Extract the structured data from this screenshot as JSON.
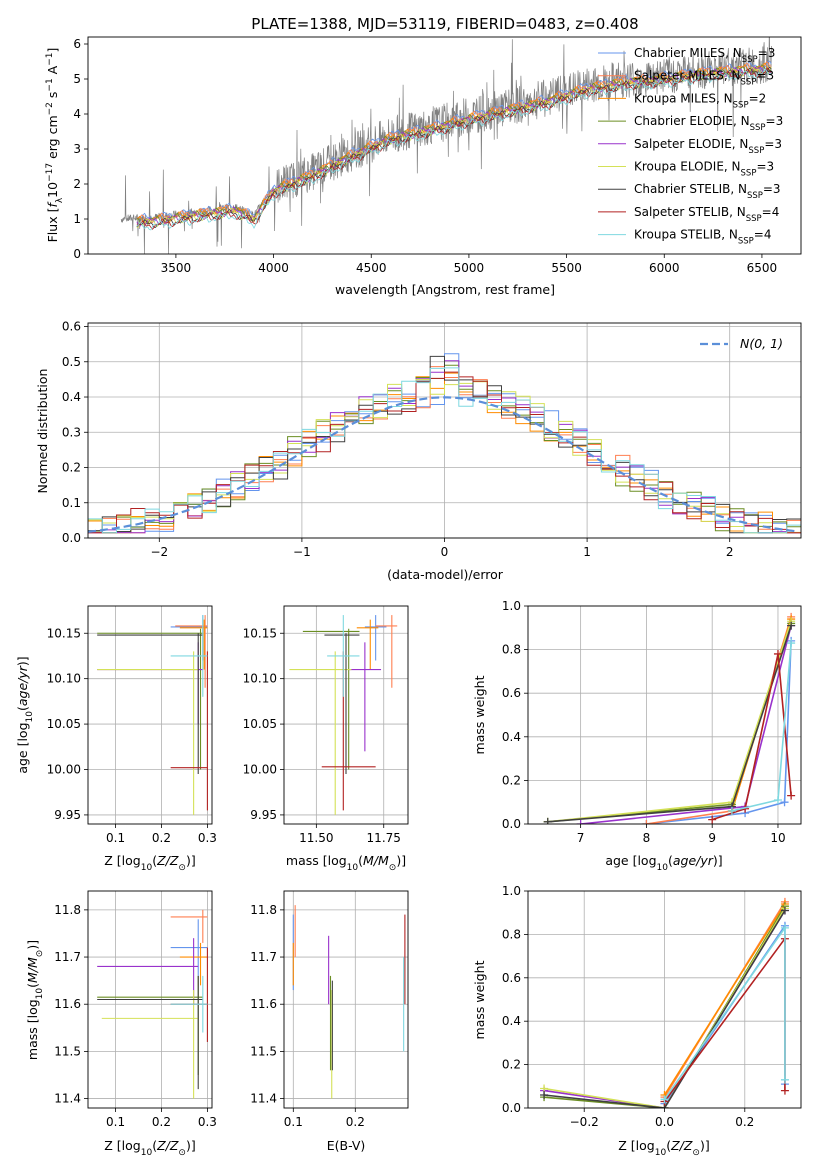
{
  "figure": {
    "title": "PLATE=1388, MJD=53119, FIBERID=0483, z=0.408"
  },
  "colors": {
    "Chabrier MILES": "#6495ed",
    "Salpeter MILES": "#ff7f50",
    "Kroupa MILES": "#ff8c00",
    "Chabrier ELODIE": "#6b8e23",
    "Salpeter ELODIE": "#9932cc",
    "Kroupa ELODIE": "#d4e157",
    "Chabrier STELIB": "#404040",
    "Salpeter STELIB": "#b22222",
    "Kroupa STELIB": "#7fd8e0",
    "data": "#808080",
    "normal": "#5b8fd9"
  },
  "chart_data": [
    {
      "id": "spectrum",
      "type": "line",
      "xlabel": "wavelength [Angstrom, rest frame]",
      "ylabel": "Flux [f_λ 10^-17 erg cm^-2 s^-1 A^-1]",
      "xlim": [
        3050,
        6700
      ],
      "ylim": [
        0,
        6.2
      ],
      "xticks": [
        3500,
        4000,
        4500,
        5000,
        5500,
        6000,
        6500
      ],
      "yticks": [
        0,
        1,
        2,
        3,
        4,
        5,
        6
      ],
      "grid": false,
      "legend_position": "top-right",
      "data_range": [
        3220,
        6550
      ],
      "continuum": [
        [
          3220,
          1.0
        ],
        [
          3400,
          1.05
        ],
        [
          3600,
          1.2
        ],
        [
          3800,
          1.35
        ],
        [
          3900,
          1.1
        ],
        [
          4000,
          1.9
        ],
        [
          4200,
          2.35
        ],
        [
          4400,
          2.9
        ],
        [
          4600,
          3.4
        ],
        [
          4800,
          3.65
        ],
        [
          5000,
          3.95
        ],
        [
          5200,
          4.2
        ],
        [
          5400,
          4.45
        ],
        [
          5600,
          4.8
        ],
        [
          5800,
          5.0
        ],
        [
          6000,
          5.1
        ],
        [
          6200,
          5.25
        ],
        [
          6400,
          5.35
        ],
        [
          6550,
          5.4
        ]
      ],
      "legend": [
        {
          "label": "Chabrier MILES",
          "nssp": "3"
        },
        {
          "label": "Salpeter MILES",
          "nssp": "3"
        },
        {
          "label": "Kroupa MILES",
          "nssp": "2"
        },
        {
          "label": "Chabrier ELODIE",
          "nssp": "3"
        },
        {
          "label": "Salpeter ELODIE",
          "nssp": "3"
        },
        {
          "label": "Kroupa ELODIE",
          "nssp": "3"
        },
        {
          "label": "Chabrier STELIB",
          "nssp": "3"
        },
        {
          "label": "Salpeter STELIB",
          "nssp": "4"
        },
        {
          "label": "Kroupa STELIB",
          "nssp": "4"
        }
      ]
    },
    {
      "id": "residuals",
      "type": "line",
      "xlabel": "(data-model)/error",
      "ylabel": "Normed distribution",
      "xlim": [
        -2.5,
        2.5
      ],
      "ylim": [
        0,
        0.61
      ],
      "xticks": [
        -2,
        -1,
        0,
        1,
        2
      ],
      "yticks": [
        0.0,
        0.1,
        0.2,
        0.3,
        0.4,
        0.5,
        0.6
      ],
      "grid": true,
      "legend_position": "top-right",
      "legend_label": "N(0, 1)",
      "bins": 50,
      "series": [
        {
          "model": "Chabrier MILES",
          "shift": 0.01
        },
        {
          "model": "Salpeter MILES",
          "shift": 0.015
        },
        {
          "model": "Kroupa MILES",
          "shift": 0.0
        },
        {
          "model": "Chabrier ELODIE",
          "shift": -0.01
        },
        {
          "model": "Salpeter ELODIE",
          "shift": 0.005
        },
        {
          "model": "Kroupa ELODIE",
          "shift": -0.005
        },
        {
          "model": "Chabrier STELIB",
          "shift": 0.02
        },
        {
          "model": "Salpeter STELIB",
          "shift": 0.025
        },
        {
          "model": "Kroupa STELIB",
          "shift": 0.0
        }
      ]
    },
    {
      "id": "age-vs-z",
      "type": "scatter",
      "xlabel": "Z [log10(Z/Z⊙)]",
      "ylabel": "age  [log10(age/yr)]",
      "xlim": [
        0.04,
        0.31
      ],
      "ylim": [
        9.94,
        10.18
      ],
      "xticks": [
        0.1,
        0.2,
        0.3
      ],
      "yticks": [
        9.95,
        10.0,
        10.05,
        10.1,
        10.15
      ],
      "grid": true,
      "points": [
        {
          "model": "Chabrier MILES",
          "x": 0.29,
          "y": 10.157,
          "xerr": [
            0.22,
            0.3
          ],
          "yerr": [
            10.12,
            10.17
          ]
        },
        {
          "model": "Salpeter MILES",
          "x": 0.295,
          "y": 10.158,
          "xerr": [
            0.23,
            0.3
          ],
          "yerr": [
            10.09,
            10.17
          ]
        },
        {
          "model": "Kroupa MILES",
          "x": 0.293,
          "y": 10.156,
          "xerr": [
            0.24,
            0.3
          ],
          "yerr": [
            10.11,
            10.165
          ]
        },
        {
          "model": "Chabrier ELODIE",
          "x": 0.285,
          "y": 10.15,
          "xerr": [
            0.06,
            0.29
          ],
          "yerr": [
            10.0,
            10.155
          ]
        },
        {
          "model": "Salpeter ELODIE",
          "x": 0.28,
          "y": 10.11,
          "xerr": [
            0.06,
            0.29
          ],
          "yerr": [
            10.05,
            10.14
          ]
        },
        {
          "model": "Kroupa ELODIE",
          "x": 0.27,
          "y": 10.11,
          "xerr": [
            0.06,
            0.28
          ],
          "yerr": [
            9.95,
            10.13
          ]
        },
        {
          "model": "Chabrier STELIB",
          "x": 0.28,
          "y": 10.148,
          "xerr": [
            0.06,
            0.29
          ],
          "yerr": [
            9.995,
            10.15
          ]
        },
        {
          "model": "Salpeter STELIB",
          "x": 0.3,
          "y": 10.002,
          "xerr": [
            0.22,
            0.3
          ],
          "yerr": [
            9.955,
            10.13
          ]
        },
        {
          "model": "Kroupa STELIB",
          "x": 0.29,
          "y": 10.125,
          "xerr": [
            0.22,
            0.3
          ],
          "yerr": [
            10.08,
            10.17
          ]
        }
      ]
    },
    {
      "id": "age-vs-mass",
      "type": "scatter",
      "xlabel": "mass [log10(M/M⊙)]",
      "ylabel": "",
      "xlim": [
        11.38,
        11.84
      ],
      "ylim": [
        9.94,
        10.18
      ],
      "xticks": [
        11.5,
        11.75
      ],
      "yticks": [
        9.95,
        10.0,
        10.05,
        10.1,
        10.15
      ],
      "grid": true,
      "points": [
        {
          "model": "Chabrier MILES",
          "x": 11.72,
          "y": 10.157,
          "xerr": [
            11.68,
            11.76
          ],
          "yerr": [
            10.12,
            10.17
          ]
        },
        {
          "model": "Salpeter MILES",
          "x": 11.78,
          "y": 10.158,
          "xerr": [
            11.72,
            11.8
          ],
          "yerr": [
            10.09,
            10.17
          ]
        },
        {
          "model": "Kroupa MILES",
          "x": 11.7,
          "y": 10.156,
          "xerr": [
            11.65,
            11.73
          ],
          "yerr": [
            10.11,
            10.165
          ]
        },
        {
          "model": "Chabrier ELODIE",
          "x": 11.62,
          "y": 10.152,
          "xerr": [
            11.45,
            11.66
          ],
          "yerr": [
            10.0,
            10.155
          ]
        },
        {
          "model": "Salpeter ELODIE",
          "x": 11.68,
          "y": 10.11,
          "xerr": [
            11.62,
            11.74
          ],
          "yerr": [
            10.02,
            10.14
          ]
        },
        {
          "model": "Kroupa ELODIE",
          "x": 11.57,
          "y": 10.11,
          "xerr": [
            11.4,
            11.63
          ],
          "yerr": [
            9.95,
            10.13
          ]
        },
        {
          "model": "Chabrier STELIB",
          "x": 11.61,
          "y": 10.148,
          "xerr": [
            11.53,
            11.66
          ],
          "yerr": [
            9.995,
            10.15
          ]
        },
        {
          "model": "Salpeter STELIB",
          "x": 11.6,
          "y": 10.003,
          "xerr": [
            11.52,
            11.72
          ],
          "yerr": [
            9.955,
            10.13
          ]
        },
        {
          "model": "Kroupa STELIB",
          "x": 11.6,
          "y": 10.125,
          "xerr": [
            11.54,
            11.66
          ],
          "yerr": [
            10.08,
            10.17
          ]
        }
      ]
    },
    {
      "id": "massweight-vs-age",
      "type": "line",
      "xlabel": "age  [log10(age/yr)]",
      "ylabel": "mass weight",
      "xlim": [
        6.2,
        10.35
      ],
      "ylim": [
        0,
        1.0
      ],
      "xticks": [
        7,
        8,
        9,
        10
      ],
      "yticks": [
        0.0,
        0.2,
        0.4,
        0.6,
        0.8,
        1.0
      ],
      "grid": true,
      "series": [
        {
          "model": "Chabrier MILES",
          "x": [
            8.0,
            9.5,
            10.1,
            10.2
          ],
          "y": [
            0.0,
            0.05,
            0.1,
            0.84
          ]
        },
        {
          "model": "Salpeter MILES",
          "x": [
            8.0,
            9.3,
            10.2
          ],
          "y": [
            0.0,
            0.06,
            0.95
          ]
        },
        {
          "model": "Kroupa MILES",
          "x": [
            9.3,
            10.2
          ],
          "y": [
            0.06,
            0.94
          ]
        },
        {
          "model": "Chabrier ELODIE",
          "x": [
            6.5,
            9.3,
            10.2
          ],
          "y": [
            0.01,
            0.09,
            0.92
          ]
        },
        {
          "model": "Salpeter ELODIE",
          "x": [
            7.0,
            9.5,
            10.2
          ],
          "y": [
            0.0,
            0.08,
            0.91
          ]
        },
        {
          "model": "Kroupa ELODIE",
          "x": [
            6.5,
            9.3,
            10.2
          ],
          "y": [
            0.01,
            0.1,
            0.93
          ]
        },
        {
          "model": "Chabrier STELIB",
          "x": [
            6.5,
            9.3,
            10.2
          ],
          "y": [
            0.01,
            0.08,
            0.91
          ]
        },
        {
          "model": "Salpeter STELIB",
          "x": [
            9.0,
            9.5,
            10.0,
            10.2
          ],
          "y": [
            0.02,
            0.07,
            0.78,
            0.13
          ]
        },
        {
          "model": "Kroupa STELIB",
          "x": [
            9.3,
            10.0,
            10.2
          ],
          "y": [
            0.06,
            0.11,
            0.83
          ]
        }
      ]
    },
    {
      "id": "mass-vs-z",
      "type": "scatter",
      "xlabel": "Z [log10(Z/Z⊙)]",
      "ylabel": "mass [log10(M/M⊙)]",
      "xlim": [
        0.04,
        0.31
      ],
      "ylim": [
        11.38,
        11.84
      ],
      "xticks": [
        0.1,
        0.2,
        0.3
      ],
      "yticks": [
        11.4,
        11.5,
        11.6,
        11.7,
        11.8
      ],
      "grid": true,
      "points": [
        {
          "model": "Chabrier MILES",
          "x": 0.28,
          "y": 11.72,
          "xerr": [
            0.22,
            0.3
          ],
          "yerr": [
            11.66,
            11.78
          ]
        },
        {
          "model": "Salpeter MILES",
          "x": 0.29,
          "y": 11.785,
          "xerr": [
            0.22,
            0.3
          ],
          "yerr": [
            11.73,
            11.8
          ]
        },
        {
          "model": "Kroupa MILES",
          "x": 0.285,
          "y": 11.7,
          "xerr": [
            0.24,
            0.3
          ],
          "yerr": [
            11.64,
            11.73
          ]
        },
        {
          "model": "Chabrier ELODIE",
          "x": 0.28,
          "y": 11.615,
          "xerr": [
            0.06,
            0.29
          ],
          "yerr": [
            11.45,
            11.66
          ]
        },
        {
          "model": "Salpeter ELODIE",
          "x": 0.27,
          "y": 11.68,
          "xerr": [
            0.06,
            0.28
          ],
          "yerr": [
            11.6,
            11.74
          ]
        },
        {
          "model": "Kroupa ELODIE",
          "x": 0.27,
          "y": 11.57,
          "xerr": [
            0.07,
            0.28
          ],
          "yerr": [
            11.4,
            11.63
          ]
        },
        {
          "model": "Chabrier STELIB",
          "x": 0.28,
          "y": 11.61,
          "xerr": [
            0.06,
            0.29
          ],
          "yerr": [
            11.42,
            11.66
          ]
        },
        {
          "model": "Salpeter STELIB",
          "x": 0.3,
          "y": 11.6,
          "xerr": [
            0.22,
            0.3
          ],
          "yerr": [
            11.52,
            11.72
          ]
        },
        {
          "model": "Kroupa STELIB",
          "x": 0.29,
          "y": 11.6,
          "xerr": [
            0.22,
            0.3
          ],
          "yerr": [
            11.54,
            11.66
          ]
        }
      ]
    },
    {
      "id": "mass-vs-ebv",
      "type": "scatter",
      "xlabel": "E(B-V)",
      "ylabel": "",
      "xlim": [
        0.085,
        0.285
      ],
      "ylim": [
        11.38,
        11.84
      ],
      "xticks": [
        0.1,
        0.2
      ],
      "yticks": [
        11.4,
        11.5,
        11.6,
        11.7,
        11.8
      ],
      "grid": true,
      "points": [
        {
          "model": "Chabrier MILES",
          "x": 0.1,
          "y": 11.72,
          "yerr": [
            11.63,
            11.79
          ]
        },
        {
          "model": "Salpeter MILES",
          "x": 0.103,
          "y": 11.75,
          "yerr": [
            11.7,
            11.81
          ]
        },
        {
          "model": "Kroupa MILES",
          "x": 0.1,
          "y": 11.7,
          "yerr": [
            11.64,
            11.73
          ]
        },
        {
          "model": "Chabrier ELODIE",
          "x": 0.16,
          "y": 11.615,
          "yerr": [
            11.46,
            11.66
          ]
        },
        {
          "model": "Salpeter ELODIE",
          "x": 0.157,
          "y": 11.68,
          "yerr": [
            11.6,
            11.745
          ]
        },
        {
          "model": "Kroupa ELODIE",
          "x": 0.162,
          "y": 11.57,
          "yerr": [
            11.4,
            11.63
          ]
        },
        {
          "model": "Chabrier STELIB",
          "x": 0.163,
          "y": 11.61,
          "yerr": [
            11.46,
            11.65
          ]
        },
        {
          "model": "Salpeter STELIB",
          "x": 0.28,
          "y": 11.7,
          "yerr": [
            11.6,
            11.79
          ]
        },
        {
          "model": "Kroupa STELIB",
          "x": 0.278,
          "y": 11.6,
          "yerr": [
            11.5,
            11.7
          ]
        }
      ]
    },
    {
      "id": "massweight-vs-z",
      "type": "line",
      "xlabel": "Z [log10(Z/Z⊙)]",
      "ylabel": "mass weight",
      "xlim": [
        -0.34,
        0.34
      ],
      "ylim": [
        0,
        1.0
      ],
      "xticks": [
        -0.2,
        0.0,
        0.2
      ],
      "yticks": [
        0.0,
        0.2,
        0.4,
        0.6,
        0.8,
        1.0
      ],
      "grid": true,
      "series": [
        {
          "model": "Chabrier MILES",
          "x": [
            0.0,
            0.3,
            0.3
          ],
          "y": [
            0.02,
            0.84,
            0.11
          ]
        },
        {
          "model": "Salpeter MILES",
          "x": [
            0.0,
            0.3
          ],
          "y": [
            0.05,
            0.95
          ]
        },
        {
          "model": "Kroupa MILES",
          "x": [
            0.0,
            0.3
          ],
          "y": [
            0.06,
            0.94
          ]
        },
        {
          "model": "Chabrier ELODIE",
          "x": [
            -0.3,
            0.0,
            0.3
          ],
          "y": [
            0.05,
            0.0,
            0.93
          ]
        },
        {
          "model": "Salpeter ELODIE",
          "x": [
            -0.3,
            0.0,
            0.3
          ],
          "y": [
            0.08,
            0.0,
            0.91
          ]
        },
        {
          "model": "Kroupa ELODIE",
          "x": [
            -0.3,
            0.0,
            0.3
          ],
          "y": [
            0.09,
            0.0,
            0.92
          ]
        },
        {
          "model": "Chabrier STELIB",
          "x": [
            -0.3,
            0.0,
            0.3
          ],
          "y": [
            0.06,
            0.0,
            0.91
          ]
        },
        {
          "model": "Salpeter STELIB",
          "x": [
            0.0,
            0.3,
            0.3
          ],
          "y": [
            0.03,
            0.78,
            0.08
          ]
        },
        {
          "model": "Kroupa STELIB",
          "x": [
            0.0,
            0.3,
            0.3
          ],
          "y": [
            0.04,
            0.83,
            0.13
          ]
        }
      ]
    }
  ]
}
